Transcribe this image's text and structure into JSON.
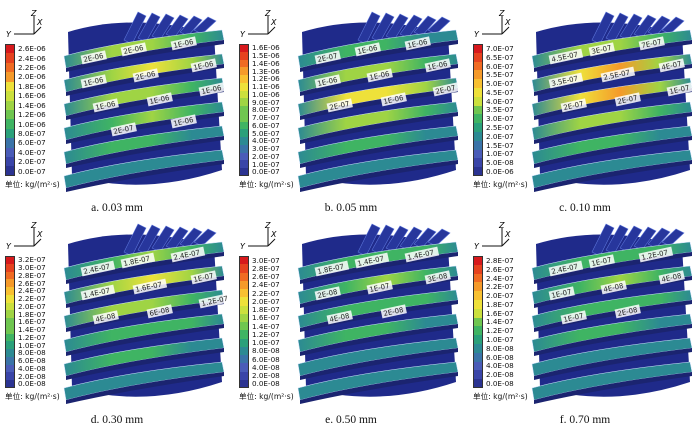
{
  "colors": {
    "scale": [
      "#d7191c",
      "#e6421f",
      "#f06b23",
      "#f59a2a",
      "#f8c031",
      "#eee13a",
      "#cbe03d",
      "#9fd444",
      "#6fc650",
      "#3fb463",
      "#2aa07a",
      "#2c8a93",
      "#3a73a8",
      "#4a5cb8",
      "#3a45a8",
      "#2b3391"
    ],
    "housing": "#1f2a8a",
    "vane": "#27369c",
    "vane_edge": "#5a73d8"
  },
  "unit_label": "单位: kg/(m²·s)",
  "axis_labels": {
    "y": "Y",
    "z": "Z",
    "x": "X"
  },
  "panels": [
    {
      "caption": "a. 0.03 mm",
      "ticks": [
        "2.6E-06",
        "2.4E-06",
        "2.2E-06",
        "2.0E-06",
        "1.8E-06",
        "1.6E-06",
        "1.4E-06",
        "1.2E-06",
        "1.0E-06",
        "8.0E-07",
        "6.0E-07",
        "4.0E-07",
        "2.0E-07",
        "0.0E-07"
      ],
      "labels": [
        "2E-06",
        "2E-06",
        "1E-06",
        "1E-06",
        "2E-06",
        "1E-06",
        "1E-06",
        "1E-06",
        "1E-06",
        "2E-07",
        "1E-06"
      ],
      "heat": [
        0.55,
        0.6,
        0.5,
        0.45,
        0.35,
        0.2
      ]
    },
    {
      "caption": "b. 0.05 mm",
      "ticks": [
        "1.6E-06",
        "1.5E-06",
        "1.4E-06",
        "1.3E-06",
        "1.2E-06",
        "1.1E-06",
        "1.0E-06",
        "9.0E-07",
        "8.0E-07",
        "7.0E-07",
        "6.0E-07",
        "5.0E-07",
        "4.0E-07",
        "3.0E-07",
        "2.0E-07",
        "1.0E-07",
        "0.0E-07"
      ],
      "labels": [
        "2E-07",
        "1E-06",
        "1E-06",
        "1E-06",
        "1E-06",
        "1E-06",
        "2E-07",
        "1E-06",
        "2E-07"
      ],
      "heat": [
        0.3,
        0.55,
        0.65,
        0.55,
        0.35,
        0.15
      ]
    },
    {
      "caption": "c. 0.10 mm",
      "ticks": [
        "7.0E-07",
        "6.5E-07",
        "6.0E-07",
        "5.5E-07",
        "5.0E-07",
        "4.5E-07",
        "4.0E-07",
        "3.5E-07",
        "3.0E-07",
        "2.5E-07",
        "2.0E-07",
        "1.5E-07",
        "1.0E-07",
        "5.0E-08",
        "0.0E-06"
      ],
      "labels": [
        "4.5E-07",
        "3E-07",
        "7E-07",
        "3.5E-07",
        "2.5E-07",
        "4E-07",
        "2E-07",
        "2E-07",
        "1E-07"
      ],
      "heat": [
        0.5,
        0.75,
        0.8,
        0.55,
        0.35,
        0.2
      ]
    },
    {
      "caption": "d. 0.30 mm",
      "ticks": [
        "3.2E-07",
        "3.0E-07",
        "2.8E-07",
        "2.6E-07",
        "2.4E-07",
        "2.2E-07",
        "2.0E-07",
        "1.8E-07",
        "1.6E-07",
        "1.4E-07",
        "1.2E-07",
        "1.0E-07",
        "8.0E-08",
        "6.0E-08",
        "4.0E-08",
        "2.0E-08",
        "0.0E-08"
      ],
      "labels": [
        "2.4E-07",
        "1.8E-07",
        "2.4E-07",
        "1.4E-07",
        "1.6E-07",
        "1E-07",
        "4E-08",
        "6E-08",
        "1.2E-07"
      ],
      "heat": [
        0.45,
        0.6,
        0.55,
        0.4,
        0.3,
        0.15
      ]
    },
    {
      "caption": "e. 0.50 mm",
      "ticks": [
        "3.0E-07",
        "2.8E-07",
        "2.6E-07",
        "2.4E-07",
        "2.2E-07",
        "2.0E-07",
        "1.8E-07",
        "1.6E-07",
        "1.4E-07",
        "1.2E-07",
        "1.0E-07",
        "8.0E-08",
        "6.0E-08",
        "4.0E-08",
        "2.0E-08",
        "0.0E-08"
      ],
      "labels": [
        "1.8E-07",
        "1.4E-07",
        "1.4E-07",
        "2E-08",
        "1E-07",
        "3E-08",
        "4E-08",
        "2E-08"
      ],
      "heat": [
        0.4,
        0.45,
        0.4,
        0.3,
        0.2,
        0.12
      ]
    },
    {
      "caption": "f. 0.70 mm",
      "ticks": [
        "2.8E-07",
        "2.6E-07",
        "2.4E-07",
        "2.2E-07",
        "2.0E-07",
        "1.8E-07",
        "1.6E-07",
        "1.4E-07",
        "1.2E-07",
        "1.0E-07",
        "8.0E-08",
        "6.0E-08",
        "4.0E-08",
        "2.0E-08",
        "0.0E-08"
      ],
      "labels": [
        "2.4E-07",
        "1E-07",
        "1.2E-07",
        "1E-07",
        "4E-08",
        "4E-08",
        "1E-07",
        "2E-08"
      ],
      "heat": [
        0.4,
        0.45,
        0.4,
        0.3,
        0.2,
        0.12
      ]
    }
  ]
}
